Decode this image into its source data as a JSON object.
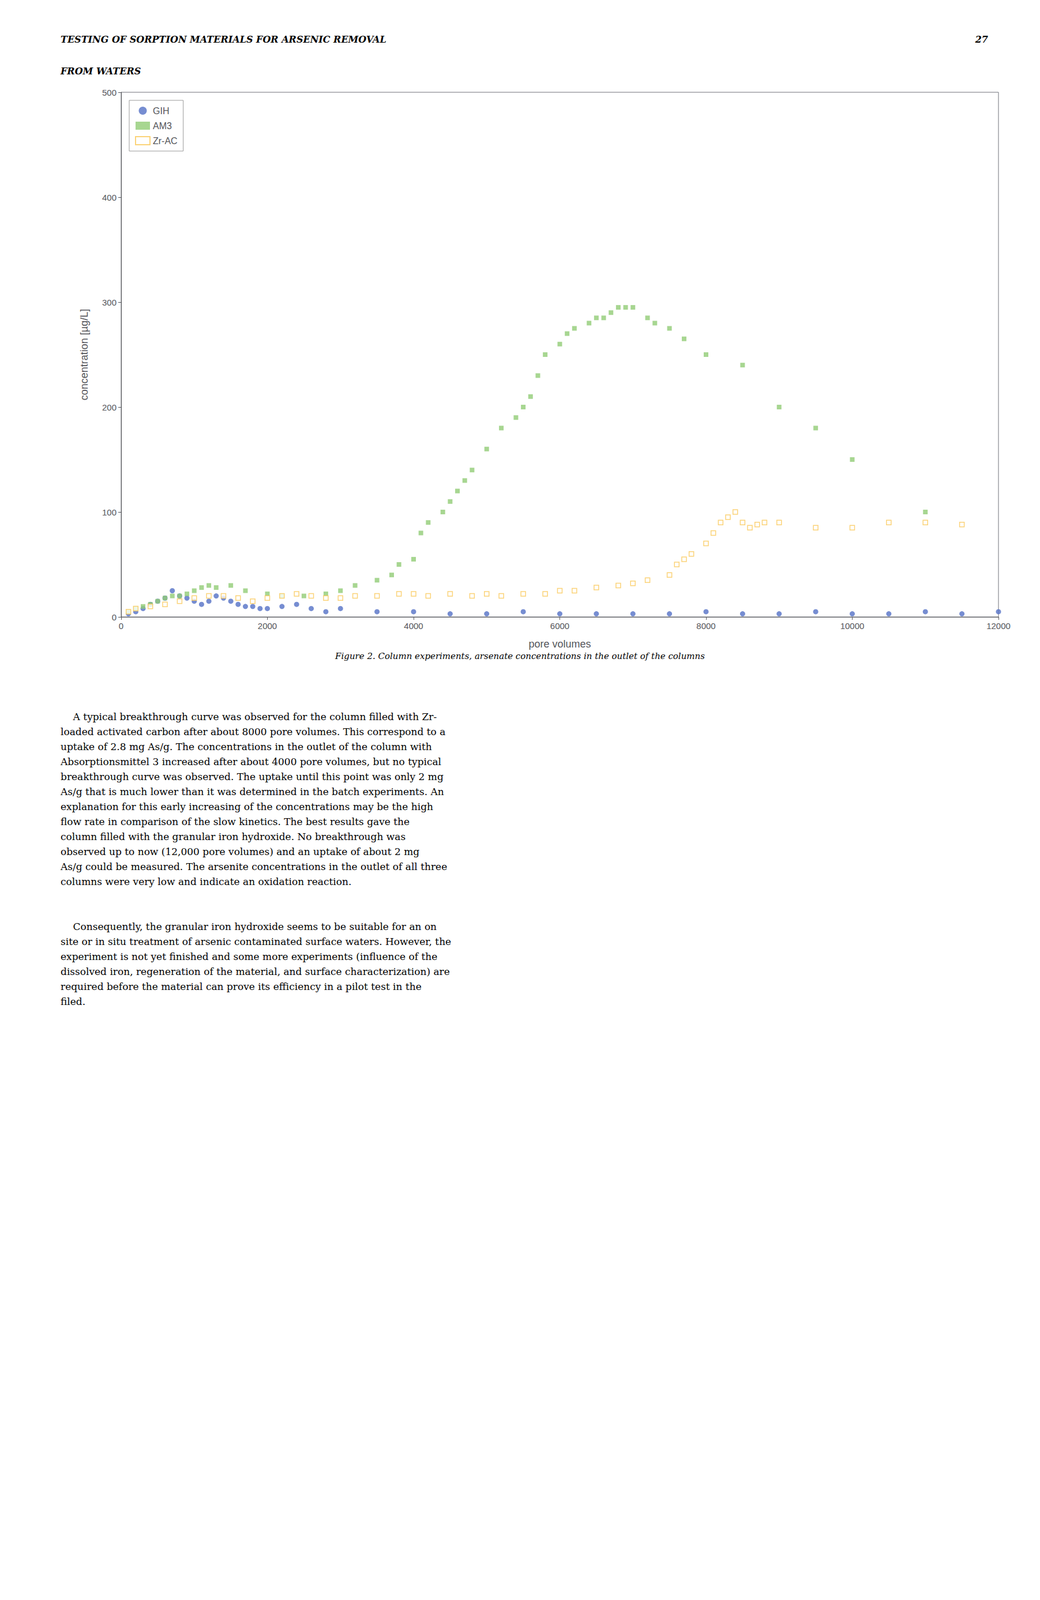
{
  "chart_data": {
    "type": "scatter",
    "xlabel": "pore volumes",
    "ylabel": "concentration [µg/L]",
    "xlim": [
      0,
      12000
    ],
    "ylim": [
      0,
      500
    ],
    "xticks": [
      0,
      2000,
      4000,
      6000,
      8000,
      10000,
      12000
    ],
    "yticks": [
      0,
      100,
      200,
      300,
      400,
      500
    ],
    "grid": false,
    "legend": "upper left",
    "annotations": [
      "TESTING OF SORPTION MATERIALS FOR ARSENIC REMOVAL",
      "27",
      "FROM WATERS",
      "Figure 2. Column experiments, arsenate concentrations in the outlet of the columns",
      "    A typical breakthrough curve was observed for the column filled with Zr-\nloaded activated carbon after about 8000 pore volumes. This correspond to a\nuptake of 2.8 mg As/g. The concentrations in the outlet of the column with\nAbsorptionsmittel 3 increased after about 4000 pore volumes, but no typical\nbreakthrough curve was observed. The uptake until this point was only 2 mg\nAs/g that is much lower than it was determined in the batch experiments. An\nexplanation for this early increasing of the concentrations may be the high\nflow rate in comparison of the slow kinetics. The best results gave the\ncolumn filled with the granular iron hydroxide. No breakthrough was\nobserved up to now (12,000 pore volumes) and an uptake of about 2 mg\nAs/g could be measured. The arsenite concentrations in the outlet of all three\ncolumns were very low and indicate an oxidation reaction.",
      "    Consequently, the granular iron hydroxide seems to be suitable for an on\nsite or in situ treatment of arsenic contaminated surface waters. However, the\nexperiment is not yet finished and some more experiments (influence of the\ndissolved iron, regeneration of the material, and surface characterization) are\nrequired before the material can prove its efficiency in a pilot test in the\nfiled."
    ],
    "series": [
      {
        "name": "GIH",
        "marker": "circle",
        "x": [
          100,
          200,
          300,
          400,
          500,
          600,
          700,
          800,
          900,
          1000,
          1100,
          1200,
          1300,
          1400,
          1500,
          1600,
          1700,
          1800,
          1900,
          2000,
          2200,
          2400,
          2600,
          2800,
          3000,
          3500,
          4000,
          4500,
          5000,
          5500,
          6000,
          6500,
          7000,
          7500,
          8000,
          8500,
          9000,
          9500,
          10000,
          10500,
          11000,
          11500,
          12000
        ],
        "values": [
          3,
          5,
          8,
          12,
          15,
          18,
          25,
          20,
          18,
          15,
          12,
          15,
          20,
          18,
          15,
          12,
          10,
          10,
          8,
          8,
          10,
          12,
          8,
          5,
          8,
          5,
          5,
          3,
          3,
          5,
          3,
          3,
          3,
          3,
          5,
          3,
          3,
          5,
          3,
          3,
          5,
          3,
          5
        ]
      },
      {
        "name": "AM3",
        "marker": "square",
        "x": [
          100,
          200,
          300,
          400,
          500,
          600,
          700,
          800,
          900,
          1000,
          1100,
          1200,
          1300,
          1500,
          1700,
          2000,
          2200,
          2500,
          2800,
          3000,
          3200,
          3500,
          3700,
          3800,
          4000,
          4100,
          4200,
          4400,
          4500,
          4600,
          4700,
          4800,
          5000,
          5200,
          5400,
          5500,
          5600,
          5700,
          5800,
          6000,
          6100,
          6200,
          6400,
          6500,
          6600,
          6700,
          6800,
          6900,
          7000,
          7200,
          7300,
          7500,
          7700,
          8000,
          8500,
          9000,
          9500,
          10000,
          11000
        ],
        "values": [
          5,
          8,
          10,
          12,
          15,
          18,
          20,
          20,
          22,
          25,
          28,
          30,
          28,
          30,
          25,
          22,
          20,
          20,
          22,
          25,
          30,
          35,
          40,
          50,
          55,
          80,
          90,
          100,
          110,
          120,
          130,
          140,
          160,
          180,
          190,
          200,
          210,
          230,
          250,
          260,
          270,
          275,
          280,
          285,
          285,
          290,
          295,
          295,
          295,
          285,
          280,
          275,
          265,
          250,
          240,
          200,
          180,
          150,
          100
        ]
      },
      {
        "name": "Zr-AC",
        "marker": "square_open",
        "x": [
          100,
          200,
          400,
          600,
          800,
          1000,
          1200,
          1400,
          1600,
          1800,
          2000,
          2200,
          2400,
          2600,
          2800,
          3000,
          3200,
          3500,
          3800,
          4000,
          4200,
          4500,
          4800,
          5000,
          5200,
          5500,
          5800,
          6000,
          6200,
          6500,
          6800,
          7000,
          7200,
          7500,
          7600,
          7700,
          7800,
          8000,
          8100,
          8200,
          8300,
          8400,
          8500,
          8600,
          8700,
          8800,
          9000,
          9500,
          10000,
          10500,
          11000,
          11500
        ],
        "values": [
          5,
          8,
          10,
          12,
          15,
          18,
          20,
          20,
          18,
          15,
          18,
          20,
          22,
          20,
          18,
          18,
          20,
          20,
          22,
          22,
          20,
          22,
          20,
          22,
          20,
          22,
          22,
          25,
          25,
          28,
          30,
          32,
          35,
          40,
          50,
          55,
          60,
          70,
          80,
          90,
          95,
          100,
          90,
          85,
          88,
          90,
          90,
          85,
          85,
          90,
          90,
          88
        ]
      }
    ]
  }
}
